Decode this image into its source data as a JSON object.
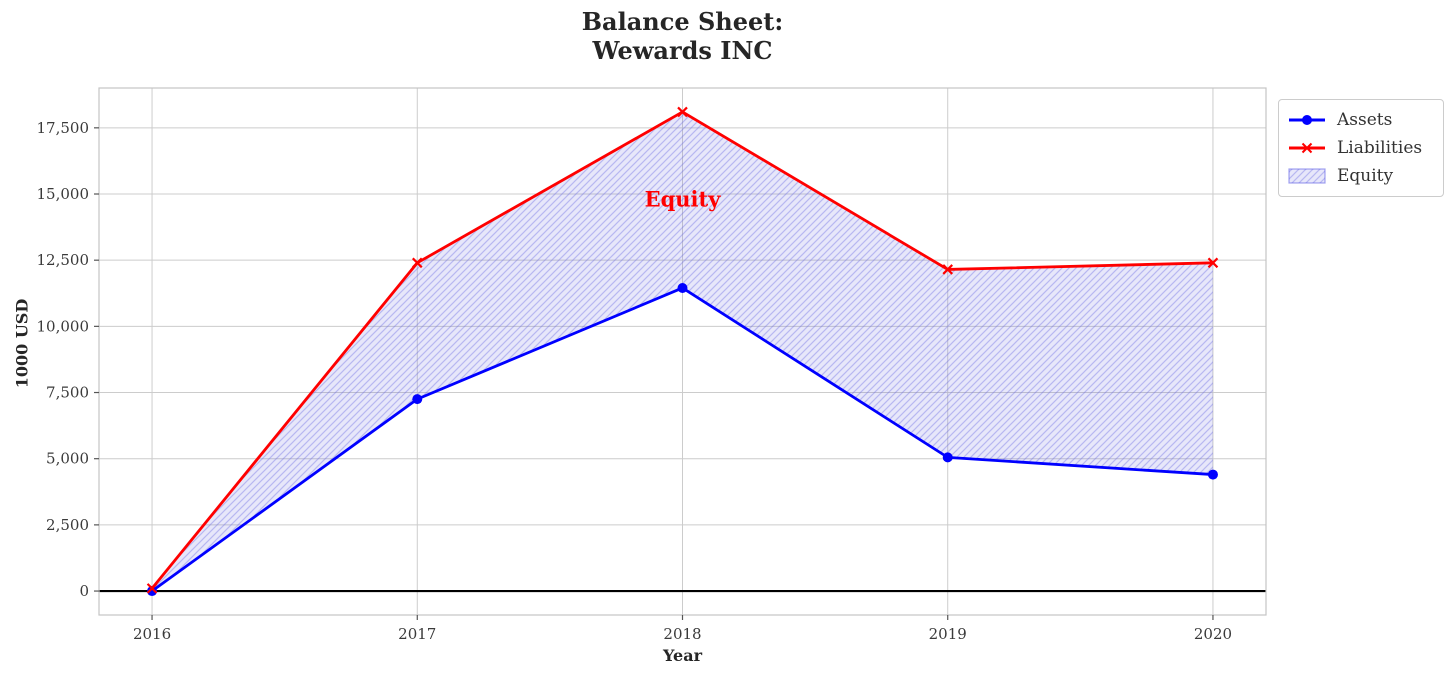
{
  "title": "Balance Sheet:\nWewards INC",
  "chart_data": {
    "type": "line",
    "title": "Balance Sheet: Wewards INC",
    "xlabel": "Year",
    "ylabel": "1000 USD",
    "x": [
      2016,
      2017,
      2018,
      2019,
      2020
    ],
    "xtick_labels": [
      "2016",
      "2017",
      "2018",
      "2019",
      "2020"
    ],
    "yticks": [
      0,
      2500,
      5000,
      7500,
      10000,
      12500,
      15000,
      17500
    ],
    "ytick_labels": [
      "0",
      "2,500",
      "5,000",
      "7,500",
      "10,000",
      "12,500",
      "15,000",
      "17,500"
    ],
    "xlim": [
      2015.8,
      2020.2
    ],
    "ylim": [
      -905,
      19005
    ],
    "grid": true,
    "grid_color": "#cccccc",
    "axes_border_color": "#c4c4c4",
    "zero_line_color": "#000000",
    "series": [
      {
        "name": "Assets",
        "color": "#0000ff",
        "marker": "circle",
        "values": [
          0,
          7250,
          11450,
          5050,
          4400
        ]
      },
      {
        "name": "Liabilities",
        "color": "#ff0000",
        "marker": "x",
        "values": [
          100,
          12400,
          18100,
          12150,
          12400
        ]
      }
    ],
    "fill_between": {
      "label": "Equity",
      "between": [
        "Assets",
        "Liabilities"
      ],
      "fill_color": "rgba(105,105,225,0.16)",
      "hatch_color": "rgba(105,105,225,0.38)",
      "annotation": {
        "text": "Equity",
        "x": 2018,
        "y": 14800,
        "color": "#ff0000"
      }
    },
    "legend": {
      "position": "outside upper right",
      "entries": [
        "Assets",
        "Liabilities",
        "Equity"
      ]
    }
  }
}
